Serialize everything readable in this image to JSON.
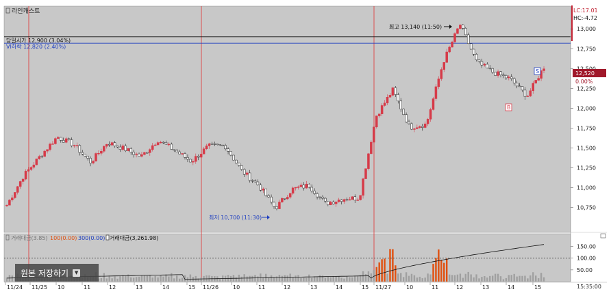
{
  "chart_title": "라인캐스트",
  "save_button": {
    "label": "원본 저장하기",
    "icon": "chevron-down-icon"
  },
  "colors": {
    "background": "#c8c8c8",
    "up": "#d63a48",
    "down": "#222222",
    "open_line": "#111111",
    "vi_line": "#1f3fc0",
    "session_line": "#e03030",
    "current_price_bg": "#a0182a",
    "volume_bar": "#a0a0a0",
    "volume_highlight": "#e05010"
  },
  "annotations": {
    "open": "당일시가 12,900 (3.04%)",
    "vi": "VI하락 12,820 (2.40%)",
    "high": "최고 13,140 (11:50)",
    "low": "최저 10,700 (11:30)",
    "marker_s": "S",
    "marker_b": "B"
  },
  "price_axis": {
    "ticks": [
      "13,000",
      "12,750",
      "12,500",
      "12,250",
      "12,000",
      "11,750",
      "11,500",
      "11,250",
      "11,000",
      "10,750"
    ],
    "lc": "LC:17.01",
    "hc": "HC:-4.72",
    "current_price": "12,520",
    "current_change": "0.00%"
  },
  "volume_legend": {
    "item1": "거래대금(3.85)",
    "item2": "100(0.00)",
    "item3": "300(0.00)",
    "item4": "거래대금(3,261.98)"
  },
  "volume_axis": {
    "ticks": [
      "150.00",
      "100.00",
      "50.00"
    ]
  },
  "time_axis": {
    "labels": [
      "11/24",
      "11/25",
      "10",
      "11",
      "12",
      "13",
      "14",
      "15",
      "11/26",
      "10",
      "11",
      "12",
      "13",
      "14",
      "15",
      "11/27",
      "10",
      "11",
      "12",
      "13",
      "14",
      "15"
    ],
    "current_time": "15:35:00"
  },
  "chart_data": {
    "type": "candlestick",
    "title": "라인캐스트",
    "x_ticks": [
      "11/24",
      "11/25",
      "10",
      "11",
      "12",
      "13",
      "14",
      "15",
      "11/26",
      "10",
      "11",
      "12",
      "13",
      "14",
      "15",
      "11/27",
      "10",
      "11",
      "12",
      "13",
      "14",
      "15"
    ],
    "session_starts": [
      "11/25",
      "11/26",
      "11/27"
    ],
    "price_waypoints": [
      10780,
      11150,
      11400,
      11640,
      11540,
      11320,
      11570,
      11490,
      11390,
      11600,
      11470,
      11330,
      11520,
      11530,
      11210,
      11030,
      10740,
      10980,
      11030,
      10800,
      10860,
      10870,
      11900,
      12230,
      11760,
      11800,
      12580,
      13060,
      12580,
      12450,
      12370,
      12150,
      12520
    ],
    "y_range": [
      10600,
      13200
    ],
    "reference_lines": {
      "open": 12900,
      "vi": 12820
    },
    "high": 13140,
    "low": 10700,
    "volume_y_range": [
      0,
      175
    ],
    "volume_ticks": [
      50,
      100,
      150
    ]
  }
}
